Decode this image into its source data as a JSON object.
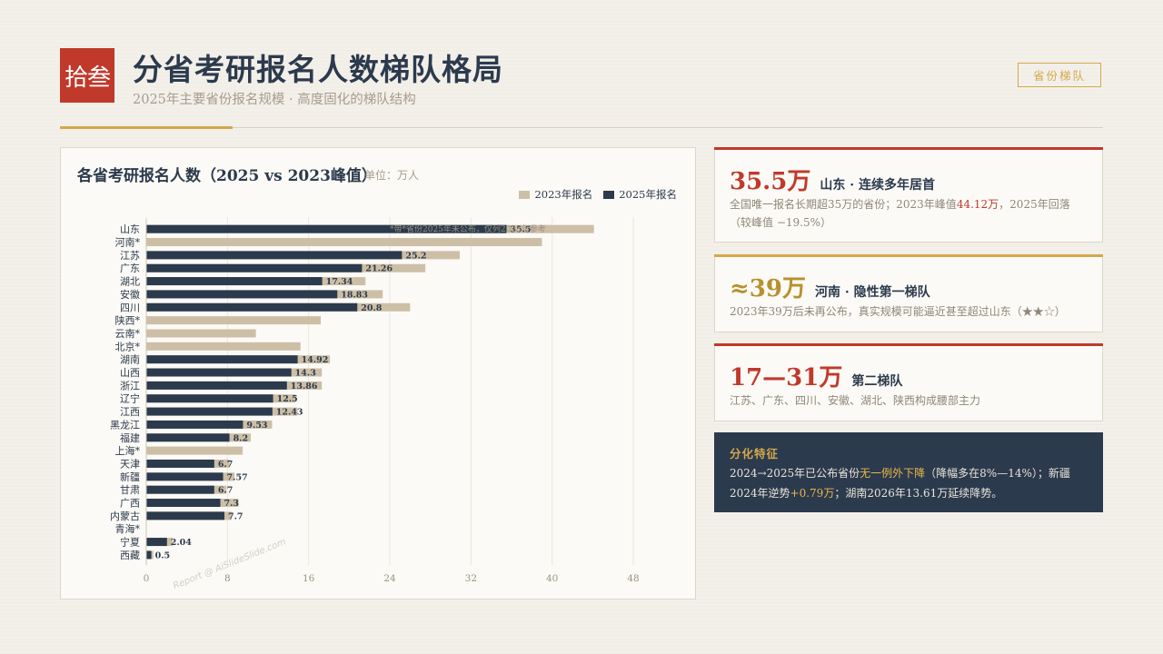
{
  "header": {
    "badge": "拾叁",
    "title": "分省考研报名人数梯队格局",
    "subtitle": "2025年主要省份报名规模 · 高度固化的梯队结构",
    "tag": "省份梯队"
  },
  "chart_panel": {
    "title": "各省考研报名人数（2025 vs 2023峰值）",
    "unit": "单位：万人",
    "watermark": "Report @ AiSlideSlide.com"
  },
  "chart_data": {
    "type": "bar",
    "orientation": "horizontal",
    "title": "各省考研报名人数（2025 vs 2023峰值）",
    "categories": [
      "山东",
      "河南*",
      "江苏",
      "广东",
      "湖北",
      "安徽",
      "四川",
      "陕西*",
      "云南*",
      "北京*",
      "湖南",
      "山西",
      "浙江",
      "辽宁",
      "江西",
      "黑龙江",
      "福建",
      "上海*",
      "天津",
      "新疆",
      "甘肃",
      "广西",
      "内蒙古",
      "青海*",
      "宁夏",
      "西藏"
    ],
    "series": [
      {
        "name": "2023年报名",
        "color": "#cdbfa6",
        "values": [
          44.12,
          39,
          30.9,
          27.5,
          21.6,
          23.3,
          26.0,
          17.2,
          10.8,
          15.2,
          18.1,
          17.3,
          17.3,
          14.7,
          14.9,
          12.4,
          10.3,
          9.5,
          8.2,
          8.7,
          7.9,
          9.1,
          8.4,
          0,
          2.6,
          0.7
        ]
      },
      {
        "name": "2025年报名",
        "color": "#2c3a4d",
        "values": [
          35.5,
          null,
          25.2,
          21.26,
          17.34,
          18.83,
          20.8,
          null,
          null,
          null,
          14.92,
          14.3,
          13.86,
          12.5,
          12.43,
          9.53,
          8.2,
          null,
          6.7,
          7.57,
          6.7,
          7.3,
          7.7,
          null,
          2.04,
          0.5
        ]
      }
    ],
    "data_labels": [
      "35.5",
      "",
      "25.2",
      "21.26",
      "17.34",
      "18.83",
      "20.8",
      "",
      "",
      "",
      "14.92",
      "14.3",
      "13.86",
      "12.5",
      "12.43",
      "9.53",
      "8.2",
      "",
      "6.7",
      "7.57",
      "6.7",
      "7.3",
      "7.7",
      "",
      "2.04",
      "0.5"
    ],
    "x_ticks": [
      0,
      8,
      16,
      24,
      32,
      40,
      48
    ],
    "xlim": [
      0,
      52
    ],
    "grid": true,
    "legend": "top-right",
    "note": "*带*省份2025年未公布，仅列2023年参考"
  },
  "cards": [
    {
      "big": "35.5万",
      "big_color": "#c0392b",
      "bar_color": "#c0392b",
      "label": "山东 · 连续多年居首",
      "desc_a": "全国唯一报名长期超35万的省份；2023年峰值",
      "desc_hl": "44.12万",
      "desc_b": "，2025年回落（较峰值 −19.5%）"
    },
    {
      "big": "≈39万",
      "big_color": "#b8902f",
      "bar_color": "#d4a84b",
      "label": "河南 · 隐性第一梯队",
      "desc": "2023年39万后未再公布，真实规模可能逼近甚至超过山东（★★☆）"
    },
    {
      "big": "17—31万",
      "big_color": "#c0392b",
      "bar_color": "#c0392b",
      "label": "第二梯队",
      "desc": "江苏、广东、四川、安徽、湖北、陕西构成腰部主力"
    }
  ],
  "feature": {
    "heading": "分化特征",
    "t1": "2024→2025年已公布省份",
    "hl1": "无一例外下降",
    "t2": "（降幅多在8%—14%）；新疆2024年逆势",
    "hl2": "+0.79万",
    "t3": "；湖南2026年13.61万延续降势。"
  }
}
